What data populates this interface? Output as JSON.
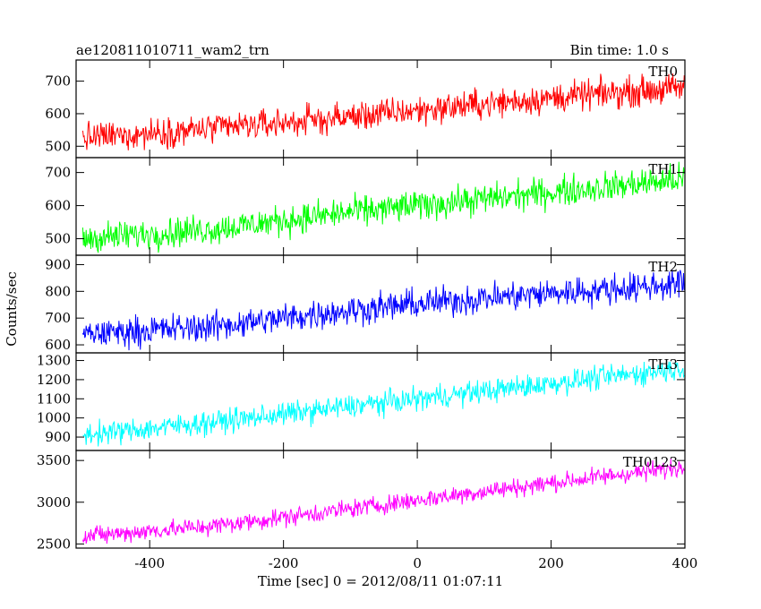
{
  "header": {
    "title": "ae120811010711_wam2_trn",
    "bin_time": "Bin time: 1.0 s"
  },
  "chart_data": {
    "type": "line",
    "xlabel": "Time [sec] 0 = 2012/08/11 01:07:11",
    "ylabel": "Counts/sec",
    "xlim": [
      -510,
      400
    ],
    "x_data_range": [
      -500,
      399
    ],
    "bin_time_sec": 1.0,
    "x_ticks": [
      -400,
      -200,
      0,
      200,
      400
    ],
    "colors": {
      "TH0": "#ff0000",
      "TH1": "#00ff00",
      "TH2": "#0000ff",
      "TH3": "#00ffff",
      "TH0123": "#ff00ff"
    },
    "series": [
      {
        "name": "TH0",
        "ylim": [
          465,
          765
        ],
        "y_ticks": [
          500,
          600,
          700
        ],
        "trend": [
          [
            -500,
            525
          ],
          [
            -300,
            555
          ],
          [
            -100,
            590
          ],
          [
            100,
            630
          ],
          [
            300,
            665
          ],
          [
            399,
            680
          ]
        ],
        "noise_amplitude": 45
      },
      {
        "name": "TH1",
        "ylim": [
          450,
          745
        ],
        "y_ticks": [
          500,
          600,
          700
        ],
        "trend": [
          [
            -500,
            500
          ],
          [
            -300,
            530
          ],
          [
            -100,
            580
          ],
          [
            100,
            620
          ],
          [
            300,
            660
          ],
          [
            399,
            680
          ]
        ],
        "noise_amplitude": 45
      },
      {
        "name": "TH2",
        "ylim": [
          570,
          935
        ],
        "y_ticks": [
          600,
          700,
          800,
          900
        ],
        "trend": [
          [
            -500,
            640
          ],
          [
            -300,
            670
          ],
          [
            -100,
            730
          ],
          [
            100,
            775
          ],
          [
            300,
            810
          ],
          [
            399,
            830
          ]
        ],
        "noise_amplitude": 55
      },
      {
        "name": "TH3",
        "ylim": [
          830,
          1340
        ],
        "y_ticks": [
          900,
          1000,
          1100,
          1200,
          1300
        ],
        "trend": [
          [
            -500,
            910
          ],
          [
            -300,
            980
          ],
          [
            -100,
            1060
          ],
          [
            100,
            1140
          ],
          [
            300,
            1220
          ],
          [
            399,
            1260
          ]
        ],
        "noise_amplitude": 60
      },
      {
        "name": "TH0123",
        "ylim": [
          2450,
          3620
        ],
        "y_ticks": [
          2500,
          3000,
          3500
        ],
        "trend": [
          [
            -500,
            2590
          ],
          [
            -300,
            2720
          ],
          [
            -100,
            2920
          ],
          [
            100,
            3130
          ],
          [
            300,
            3330
          ],
          [
            399,
            3420
          ]
        ],
        "noise_amplitude": 110
      }
    ]
  }
}
